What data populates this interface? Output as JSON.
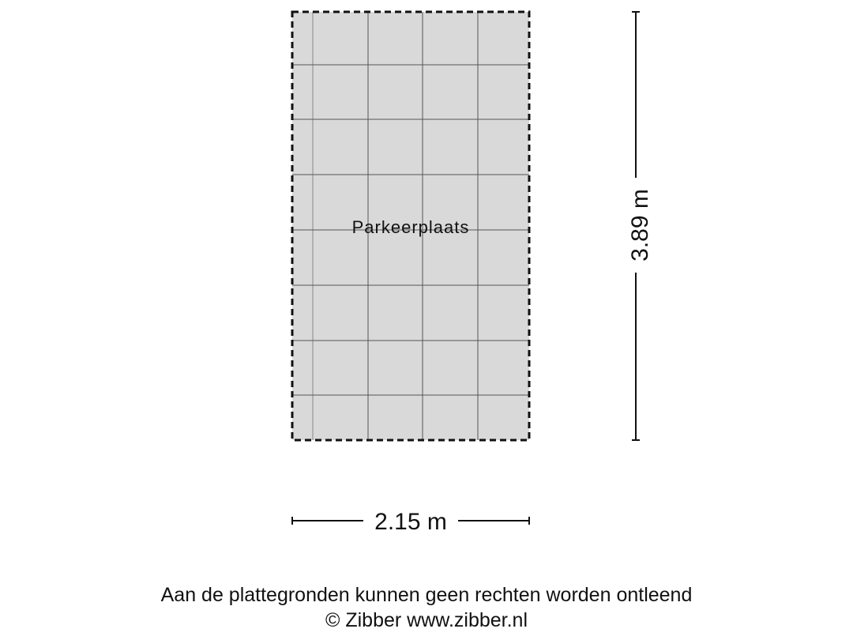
{
  "room": {
    "label": "Parkeerplaats",
    "fill": "#d9d9d9"
  },
  "dimensions": {
    "width": "2.15 m",
    "height": "3.89 m"
  },
  "footer": {
    "disclaimer": "Aan de plattegronden kunnen geen rechten worden ontleend",
    "copyright": "© Zibber www.zibber.nl"
  }
}
